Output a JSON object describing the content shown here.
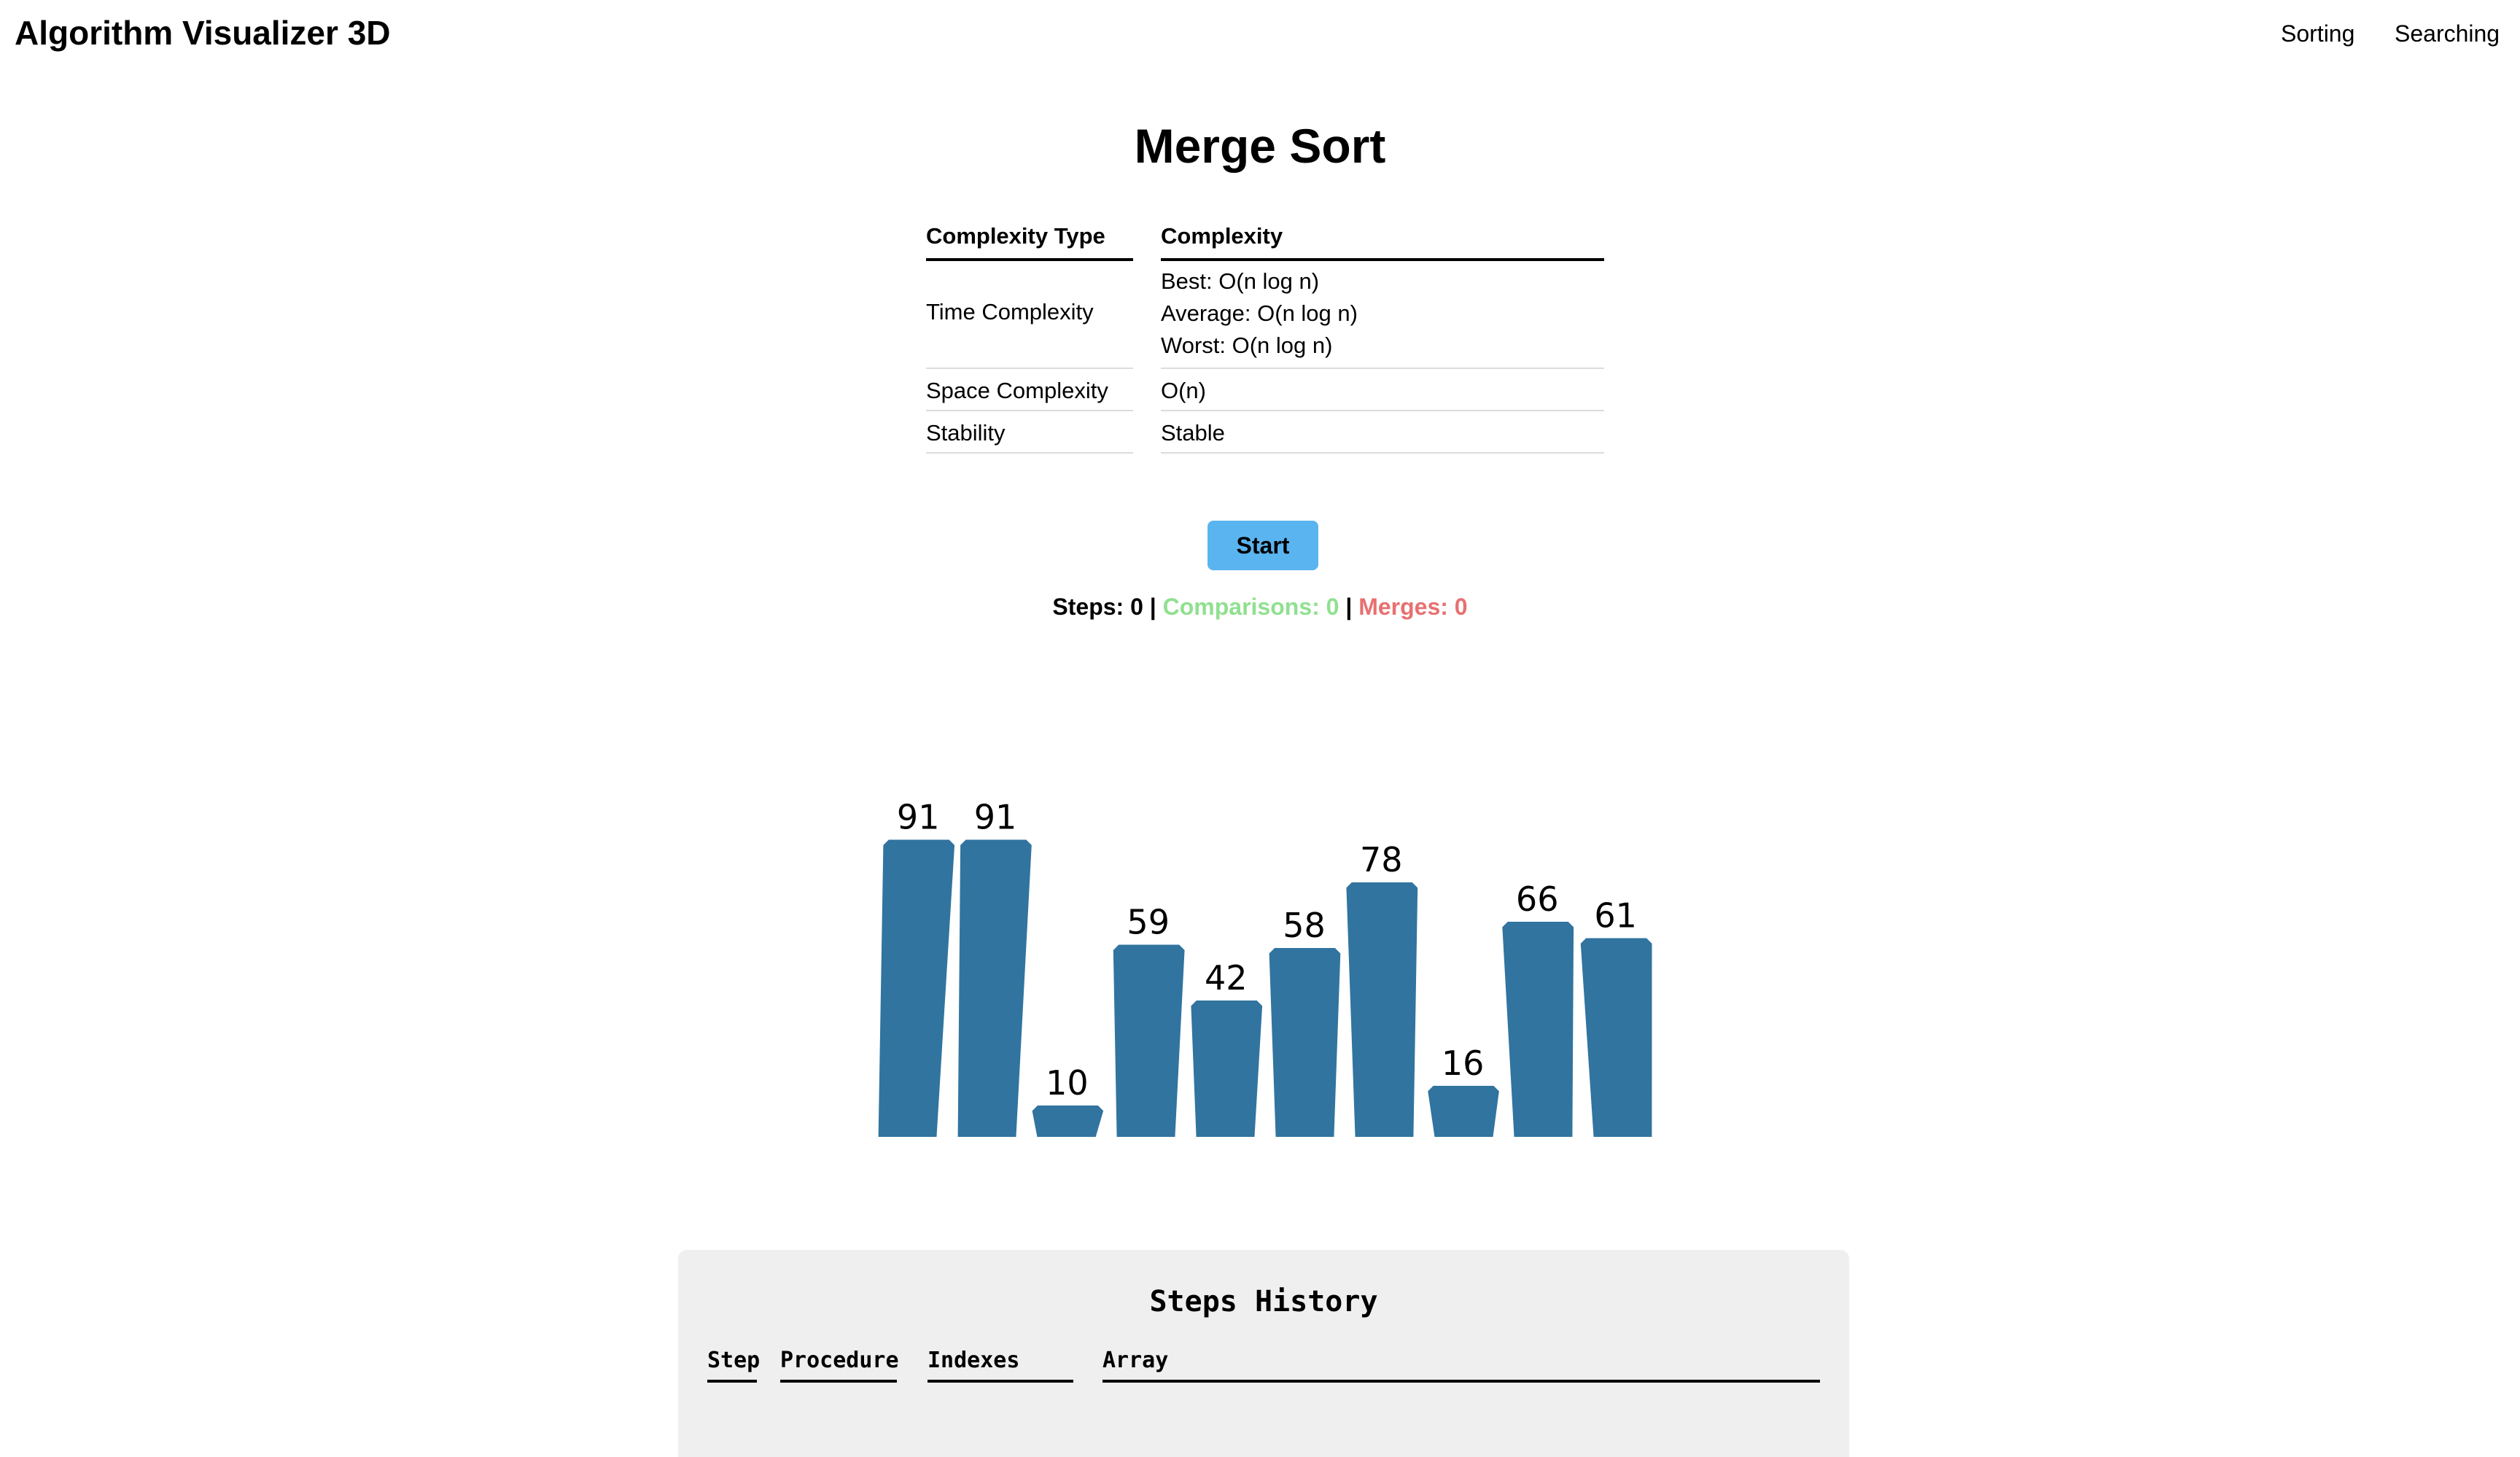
{
  "header": {
    "title": "Algorithm Visualizer 3D",
    "nav": [
      "Sorting",
      "Searching"
    ]
  },
  "page": {
    "title": "Merge Sort"
  },
  "complexity_table": {
    "headers": [
      "Complexity Type",
      "Complexity"
    ],
    "rows": [
      {
        "type": "Time Complexity",
        "values": [
          "Best: O(n log n)",
          "Average: O(n log n)",
          "Worst: O(n log n)"
        ]
      },
      {
        "type": "Space Complexity",
        "values": [
          "O(n)"
        ]
      },
      {
        "type": "Stability",
        "values": [
          "Stable"
        ]
      }
    ]
  },
  "controls": {
    "start_label": "Start"
  },
  "stats": {
    "steps_label": "Steps: 0",
    "separator": " | ",
    "comparisons_label": "Comparisons: 0",
    "merges_label": "Merges: 0",
    "comparisons_color": "#90e090",
    "merges_color": "#e87070"
  },
  "array": {
    "values": [
      91,
      91,
      10,
      59,
      42,
      58,
      78,
      16,
      66,
      61
    ],
    "bar_color": "#31749f"
  },
  "history": {
    "title": "Steps History",
    "columns": [
      "Step",
      "Procedure",
      "Indexes",
      "Array"
    ],
    "rows": []
  },
  "colors": {
    "button": "#5ab4ef",
    "panel": "#efefef"
  }
}
